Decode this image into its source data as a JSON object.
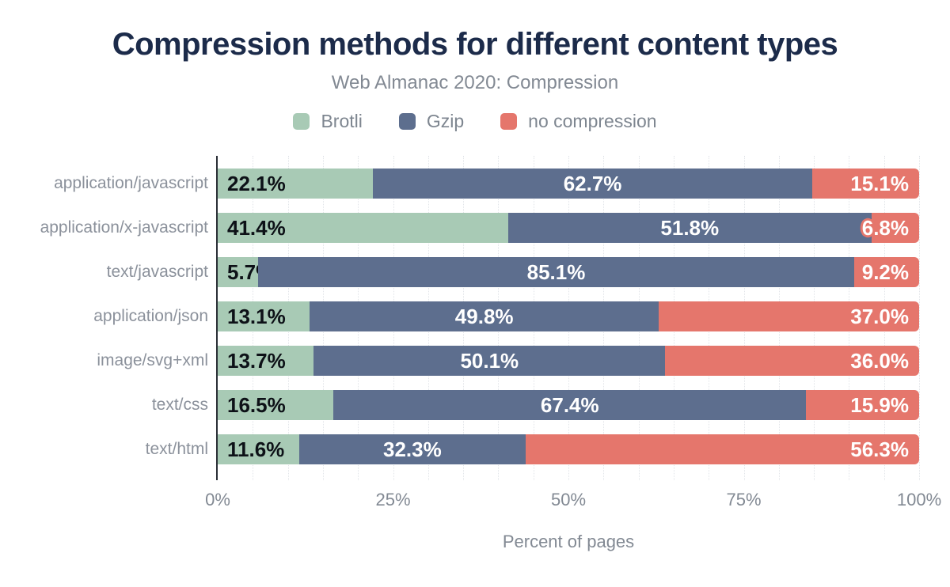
{
  "title": "Compression methods for different content types",
  "subtitle": "Web Almanac 2020: Compression",
  "colors": {
    "background": "#ffffff",
    "title_text": "#1c2b4a",
    "muted_text": "#828993",
    "category_text": "#8b919b",
    "value_text_dark": "#0d1117",
    "value_text_light": "#ffffff",
    "axis_line": "#2a2f36",
    "grid_line": "#e2e5e9"
  },
  "legend": {
    "items": [
      {
        "label": "Brotli",
        "color": "#a8cab5"
      },
      {
        "label": "Gzip",
        "color": "#5d6e8e"
      },
      {
        "label": "no compression",
        "color": "#e5766c"
      }
    ]
  },
  "chart_data": {
    "type": "bar",
    "orientation": "horizontal",
    "stacked": true,
    "title": "Compression methods for different content types",
    "subtitle": "Web Almanac 2020: Compression",
    "xlabel": "Percent of pages",
    "ylabel": "",
    "xlim": [
      0,
      100
    ],
    "xticks": [
      {
        "label": "0%",
        "value": 0
      },
      {
        "label": "25%",
        "value": 25
      },
      {
        "label": "50%",
        "value": 50
      },
      {
        "label": "75%",
        "value": 75
      },
      {
        "label": "100%",
        "value": 100
      }
    ],
    "grid": {
      "vertical_minor_interval_percent": 5,
      "style": "dotted"
    },
    "legend_position": "top",
    "value_label_format": "one_decimal_percent",
    "categories": [
      "application/javascript",
      "application/x-javascript",
      "text/javascript",
      "application/json",
      "image/svg+xml",
      "text/css",
      "text/html"
    ],
    "series": [
      {
        "name": "Brotli",
        "color": "#a8cab5",
        "label_color": "#0d1117",
        "label_align": "start",
        "values": [
          22.1,
          41.4,
          5.7,
          13.1,
          13.7,
          16.5,
          11.6
        ]
      },
      {
        "name": "Gzip",
        "color": "#5d6e8e",
        "label_color": "#ffffff",
        "label_align": "center",
        "values": [
          62.7,
          51.8,
          85.1,
          49.8,
          50.1,
          67.4,
          32.3
        ]
      },
      {
        "name": "no compression",
        "color": "#e5766c",
        "label_color": "#ffffff",
        "label_align": "end",
        "values": [
          15.1,
          6.8,
          9.2,
          37.0,
          36.0,
          15.9,
          56.3
        ]
      }
    ]
  }
}
